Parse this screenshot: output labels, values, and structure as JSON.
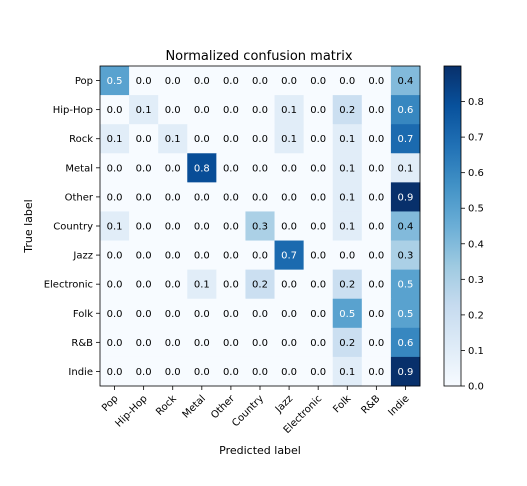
{
  "chart_data": {
    "type": "heatmap",
    "title": "Normalized confusion matrix",
    "xlabel": "Predicted label",
    "ylabel": "True label",
    "x_categories": [
      "Pop",
      "Hip-Hop",
      "Rock",
      "Metal",
      "Other",
      "Country",
      "Jazz",
      "Electronic",
      "Folk",
      "R&B",
      "Indie"
    ],
    "y_categories": [
      "Pop",
      "Hip-Hop",
      "Rock",
      "Metal",
      "Other",
      "Country",
      "Jazz",
      "Electronic",
      "Folk",
      "R&B",
      "Indie"
    ],
    "values": [
      [
        0.5,
        0.0,
        0.0,
        0.0,
        0.0,
        0.0,
        0.0,
        0.0,
        0.0,
        0.0,
        0.4
      ],
      [
        0.0,
        0.1,
        0.0,
        0.0,
        0.0,
        0.0,
        0.1,
        0.0,
        0.2,
        0.0,
        0.6
      ],
      [
        0.1,
        0.0,
        0.1,
        0.0,
        0.0,
        0.0,
        0.1,
        0.0,
        0.1,
        0.0,
        0.7
      ],
      [
        0.0,
        0.0,
        0.0,
        0.8,
        0.0,
        0.0,
        0.0,
        0.0,
        0.1,
        0.0,
        0.1
      ],
      [
        0.0,
        0.0,
        0.0,
        0.0,
        0.0,
        0.0,
        0.0,
        0.0,
        0.1,
        0.0,
        0.9
      ],
      [
        0.1,
        0.0,
        0.0,
        0.0,
        0.0,
        0.3,
        0.0,
        0.0,
        0.1,
        0.0,
        0.4
      ],
      [
        0.0,
        0.0,
        0.0,
        0.0,
        0.0,
        0.0,
        0.7,
        0.0,
        0.0,
        0.0,
        0.3
      ],
      [
        0.0,
        0.0,
        0.0,
        0.1,
        0.0,
        0.2,
        0.0,
        0.0,
        0.2,
        0.0,
        0.5
      ],
      [
        0.0,
        0.0,
        0.0,
        0.0,
        0.0,
        0.0,
        0.0,
        0.0,
        0.5,
        0.0,
        0.5
      ],
      [
        0.0,
        0.0,
        0.0,
        0.0,
        0.0,
        0.0,
        0.0,
        0.0,
        0.2,
        0.0,
        0.6
      ],
      [
        0.0,
        0.0,
        0.0,
        0.0,
        0.0,
        0.0,
        0.0,
        0.0,
        0.1,
        0.0,
        0.9
      ]
    ],
    "colorbar": {
      "min": 0.0,
      "max": 0.9,
      "ticks": [
        "0.0",
        "0.1",
        "0.2",
        "0.3",
        "0.4",
        "0.5",
        "0.6",
        "0.7",
        "0.8"
      ]
    },
    "colormap": [
      "#f7fbff",
      "#deebf7",
      "#c6dbef",
      "#9ecae1",
      "#6baed6",
      "#4292c6",
      "#2171b5",
      "#08519c",
      "#08306b"
    ],
    "grid": false
  }
}
